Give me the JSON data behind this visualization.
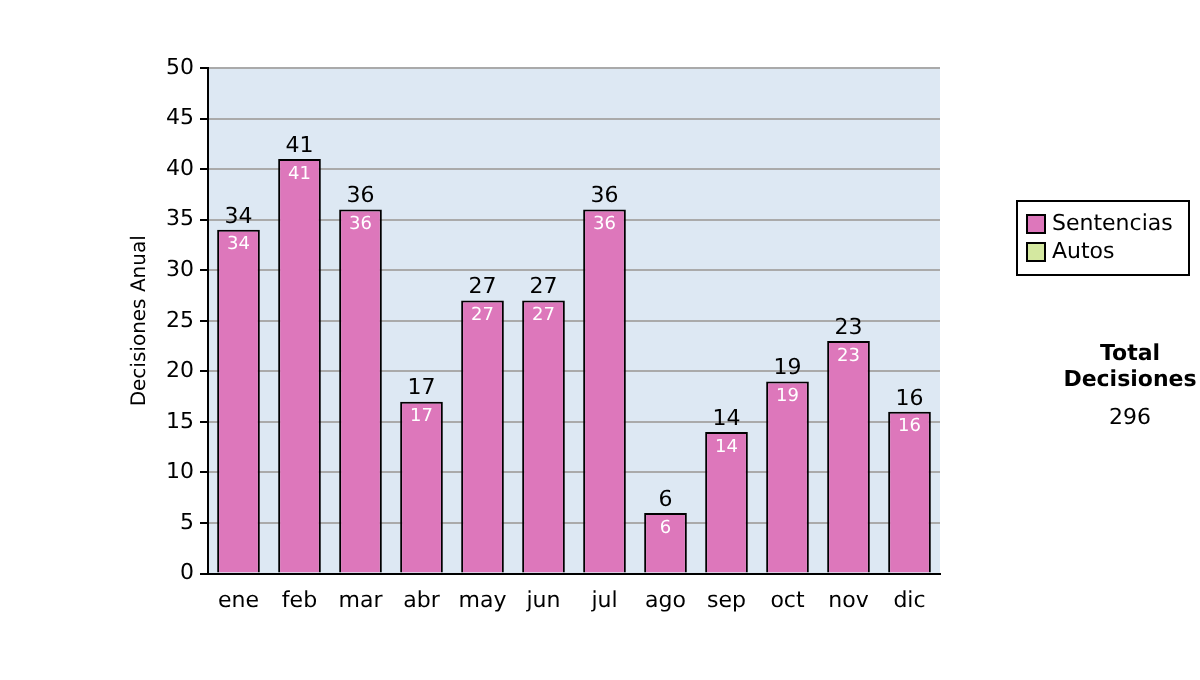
{
  "chart_data": {
    "type": "bar",
    "ylabel": "Decisiones Anual",
    "categories": [
      "ene",
      "feb",
      "mar",
      "abr",
      "may",
      "jun",
      "jul",
      "ago",
      "sep",
      "oct",
      "nov",
      "dic"
    ],
    "series": [
      {
        "name": "Sentencias",
        "color": "#dd77bb",
        "values": [
          34,
          41,
          36,
          17,
          27,
          27,
          36,
          6,
          14,
          19,
          23,
          16
        ]
      },
      {
        "name": "Autos",
        "color": "#d4e8a0",
        "values": [
          null,
          null,
          null,
          null,
          null,
          null,
          null,
          null,
          null,
          null,
          null,
          null
        ]
      }
    ],
    "stacked": true,
    "totals": [
      "34",
      "41",
      "36",
      "17",
      "27",
      "27",
      "36",
      "6",
      "14",
      "19",
      "23",
      "16"
    ],
    "data_labels": true,
    "ylim": [
      0,
      50
    ],
    "yticks": [
      0,
      5,
      10,
      15,
      20,
      25,
      30,
      35,
      40,
      45,
      50
    ],
    "grid": "y",
    "legend": "right",
    "annotations": [
      "Total Decisiones",
      "296"
    ]
  }
}
